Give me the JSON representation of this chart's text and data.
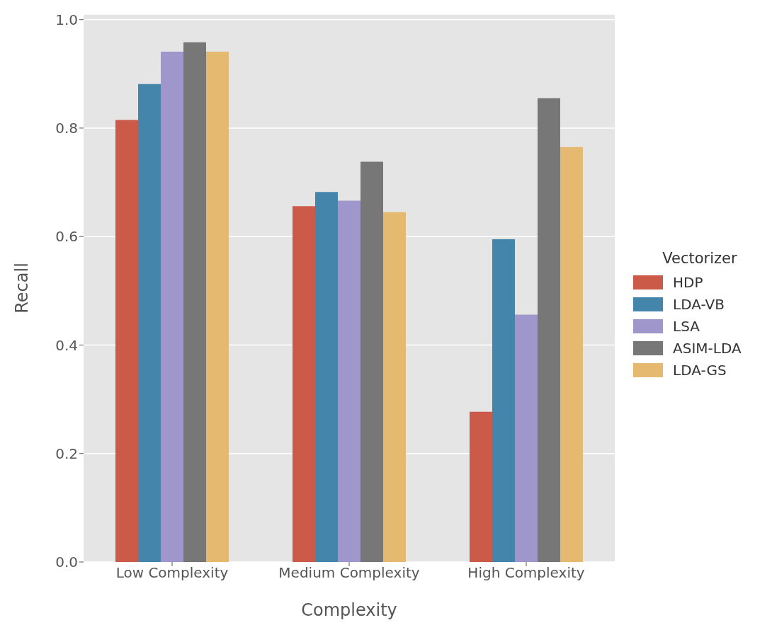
{
  "chart_data": {
    "type": "bar",
    "xlabel": "Complexity",
    "ylabel": "Recall",
    "legend_title": "Vectorizer",
    "categories": [
      "Low Complexity",
      "Medium Complexity",
      "High Complexity"
    ],
    "series": [
      {
        "name": "HDP",
        "color": "#cb5a48",
        "values": [
          0.815,
          0.656,
          0.277
        ]
      },
      {
        "name": "LDA-VB",
        "color": "#4485ab",
        "values": [
          0.881,
          0.682,
          0.595
        ]
      },
      {
        "name": "LSA",
        "color": "#9f97cb",
        "values": [
          0.941,
          0.666,
          0.456
        ]
      },
      {
        "name": "ASIM-LDA",
        "color": "#777777",
        "values": [
          0.958,
          0.738,
          0.855
        ]
      },
      {
        "name": "LDA-GS",
        "color": "#e6b970",
        "values": [
          0.941,
          0.645,
          0.765
        ]
      }
    ],
    "ylim": [
      0,
      1.01
    ],
    "yticks": [
      {
        "value": 0,
        "label": "0.0"
      },
      0.2,
      0.4,
      0.6,
      0.8,
      {
        "value": 1,
        "label": "1.0"
      }
    ],
    "grid": "y",
    "legend": "right"
  }
}
